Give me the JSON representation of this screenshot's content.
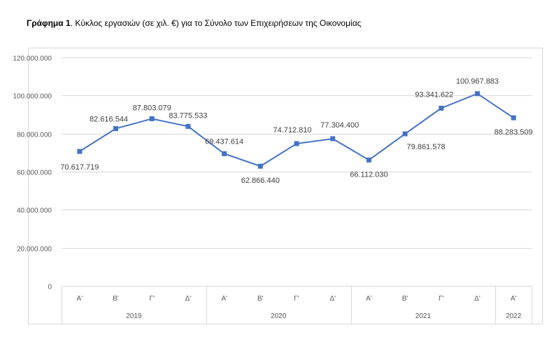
{
  "title": {
    "bold": "Γράφημα 1",
    "rest": ". Κύκλος εργασιών (σε χιλ. €) για το Σύνολο των Επιχειρήσεων της Οικονομίας"
  },
  "chart_data": {
    "type": "line",
    "title": "",
    "xlabel": "",
    "ylabel": "",
    "ylim": [
      0,
      120000000
    ],
    "yticks": [
      "0",
      "20.000.000",
      "40.000.000",
      "60.000.000",
      "80.000.000",
      "100.000.000",
      "120.000.000"
    ],
    "grid": true,
    "categories": [
      {
        "quarter": "Α'",
        "year": "2019"
      },
      {
        "quarter": "Β'",
        "year": "2019"
      },
      {
        "quarter": "Γ'",
        "year": "2019"
      },
      {
        "quarter": "Δ'",
        "year": "2019"
      },
      {
        "quarter": "Α'",
        "year": "2020"
      },
      {
        "quarter": "Β'",
        "year": "2020"
      },
      {
        "quarter": "Γ'",
        "year": "2020"
      },
      {
        "quarter": "Δ'",
        "year": "2020"
      },
      {
        "quarter": "Α'",
        "year": "2021"
      },
      {
        "quarter": "Β'",
        "year": "2021"
      },
      {
        "quarter": "Γ'",
        "year": "2021"
      },
      {
        "quarter": "Δ'",
        "year": "2021"
      },
      {
        "quarter": "Α'",
        "year": "2022"
      }
    ],
    "years": [
      "2019",
      "2020",
      "2021",
      "2022"
    ],
    "values": [
      70617719,
      82616544,
      87803079,
      83775533,
      69437614,
      62866440,
      74712810,
      77304400,
      66112030,
      79861578,
      93341622,
      100967883,
      88283509
    ],
    "labels": [
      "70.617.719",
      "82.616.544",
      "87.803.079",
      "83.775.533",
      "69.437.614",
      "62.866.440",
      "74.712.810",
      "77.304.400",
      "66.112.030",
      "79.861.578",
      "93.341.622",
      "100.967.883",
      "88.283.509"
    ],
    "color": "#4472C4"
  }
}
